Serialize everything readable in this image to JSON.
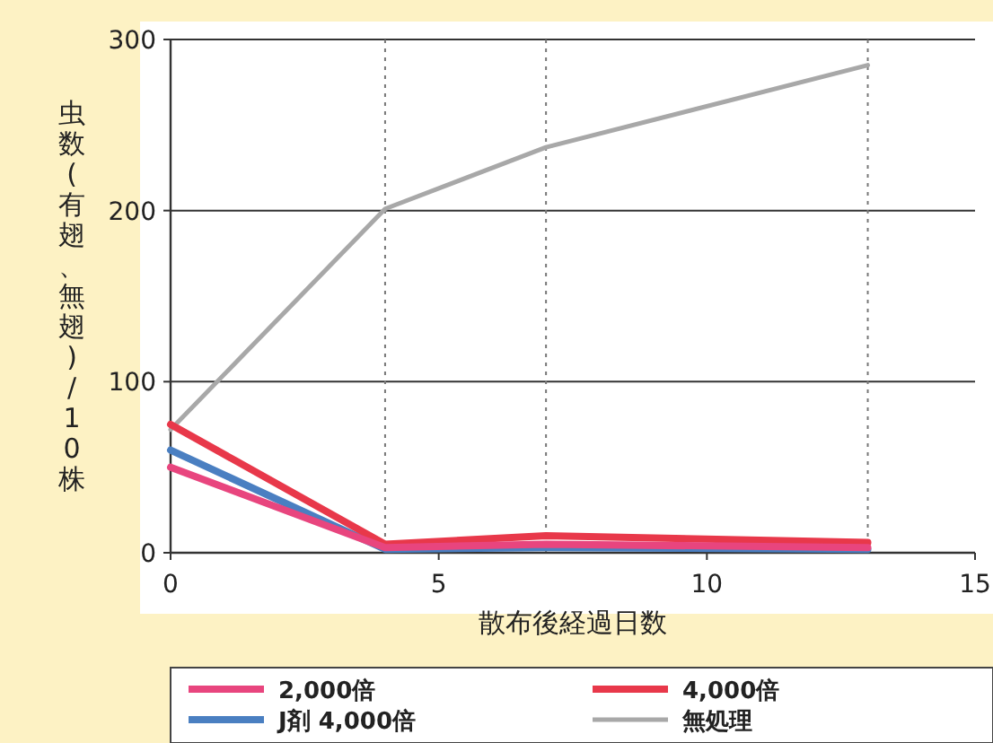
{
  "chart_data": {
    "type": "line",
    "xlabel": "散布後経過日数",
    "ylabel": "虫数(有翅、無翅)/10株",
    "xlim": [
      0,
      15
    ],
    "xticks": [
      0,
      5,
      10,
      15
    ],
    "ylim": [
      0,
      300
    ],
    "yticks": [
      0,
      100,
      200,
      300
    ],
    "grid": "y",
    "legend": "bottom",
    "marker": "none",
    "line_style": "solid",
    "x": [
      0,
      4,
      7,
      13
    ],
    "series": [
      {
        "name": "2,000倍",
        "color": "#e8457e",
        "values": [
          50,
          3,
          5,
          3
        ]
      },
      {
        "name": "4,000倍",
        "color": "#e8384a",
        "values": [
          75,
          5,
          10,
          6
        ]
      },
      {
        "name": "J剤 4,000倍",
        "color": "#4a7fc1",
        "values": [
          60,
          2,
          3,
          2
        ]
      },
      {
        "name": "無処理",
        "color": "#a8a8a8",
        "values": [
          72,
          201,
          237,
          285
        ]
      }
    ],
    "ref_lines": [
      {
        "axis": "x",
        "value": 4,
        "label": null,
        "color": "#777777",
        "line_style": "dotted"
      },
      {
        "axis": "x",
        "value": 7,
        "label": null,
        "color": "#777777",
        "line_style": "dotted"
      },
      {
        "axis": "x",
        "value": 13,
        "label": null,
        "color": "#777777",
        "line_style": "dotted"
      }
    ]
  }
}
